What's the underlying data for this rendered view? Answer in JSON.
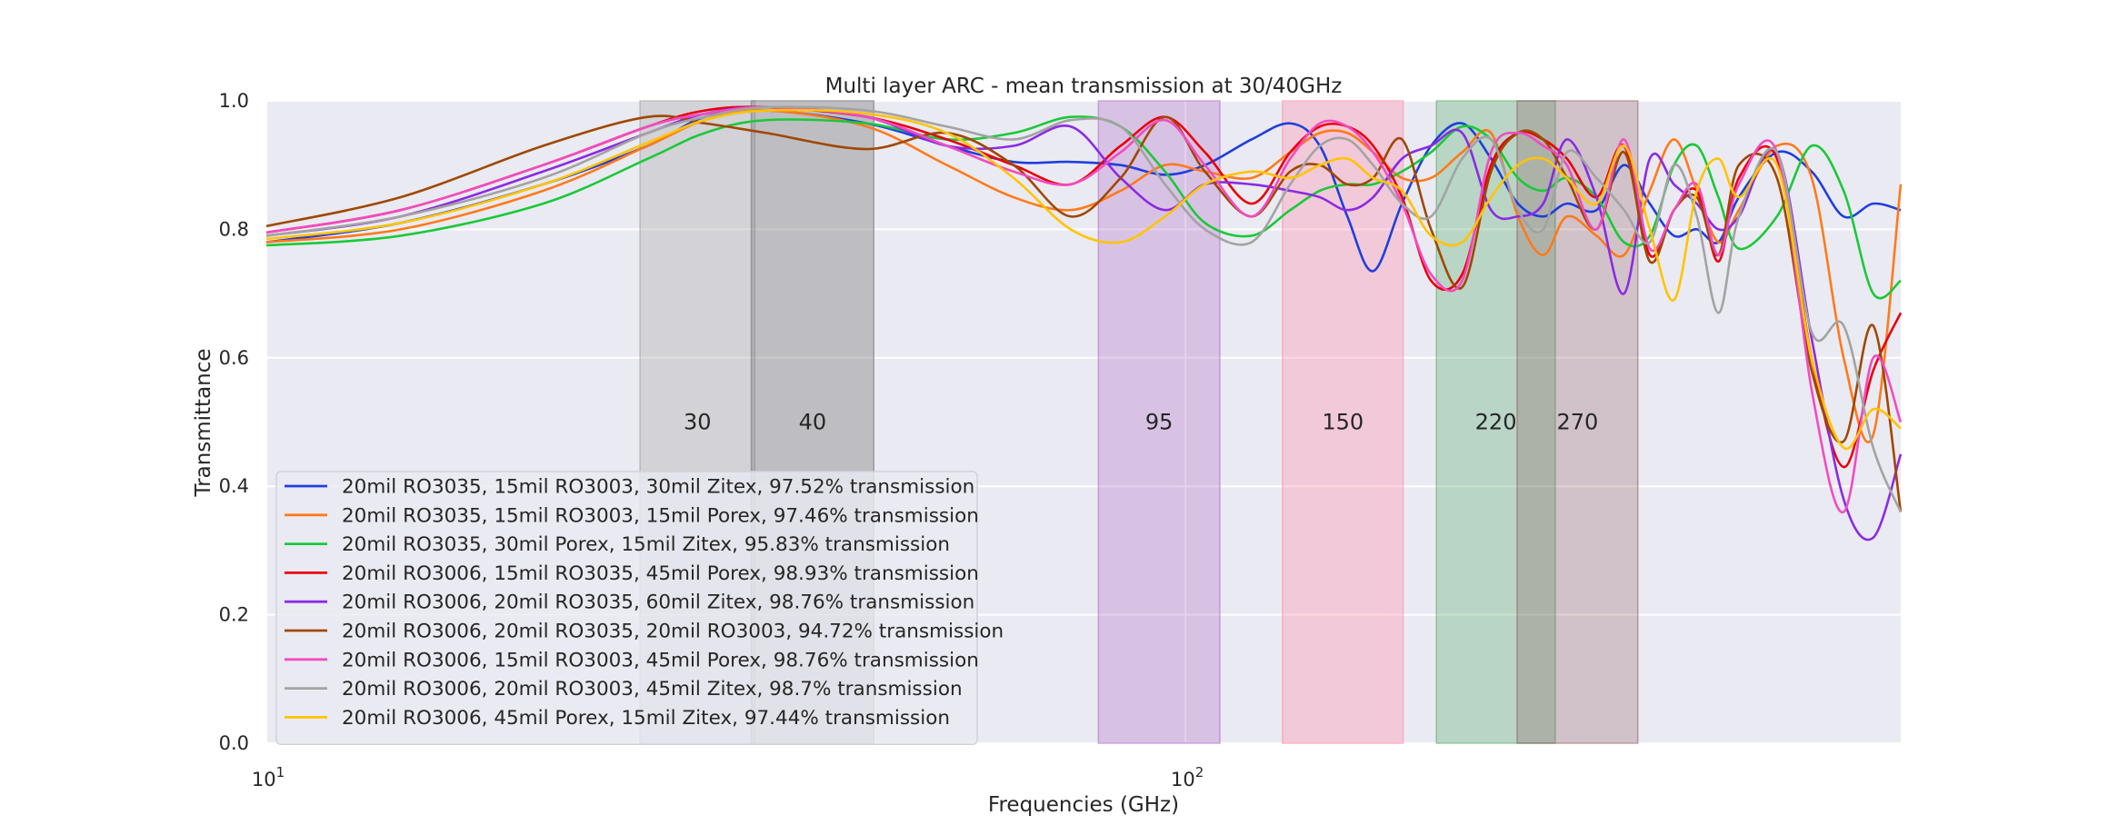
{
  "chart_data": {
    "type": "line",
    "title": "Multi layer ARC - mean transmission at 30/40GHz",
    "xlabel": "Frequencies (GHz)",
    "ylabel": "Transmittance",
    "x_scale": "log",
    "xlim": [
      10,
      600
    ],
    "ylim": [
      0,
      1
    ],
    "x_ticks": [
      {
        "value": 10,
        "base": "10",
        "exp": "1"
      },
      {
        "value": 100,
        "base": "10",
        "exp": "2"
      }
    ],
    "y_ticks": [
      {
        "value": 0.0,
        "label": "0.0"
      },
      {
        "value": 0.2,
        "label": "0.2"
      },
      {
        "value": 0.4,
        "label": "0.4"
      },
      {
        "value": 0.6,
        "label": "0.6"
      },
      {
        "value": 0.8,
        "label": "0.8"
      },
      {
        "value": 1.0,
        "label": "1.0"
      }
    ],
    "grid": true,
    "legend_position": "lower-left",
    "bands": [
      {
        "label": "30",
        "range": [
          25.5,
          34.0
        ],
        "color": "#a0a0a0",
        "opacity": 0.32
      },
      {
        "label": "40",
        "range": [
          33.7,
          45.8
        ],
        "color": "#808080",
        "opacity": 0.42
      },
      {
        "label": "95",
        "range": [
          80.4,
          109.0
        ],
        "color": "#b06cc8",
        "opacity": 0.32
      },
      {
        "label": "150",
        "range": [
          127.5,
          172.5
        ],
        "color": "#ff93b0",
        "opacity": 0.38
      },
      {
        "label": "220",
        "range": [
          187.5,
          252.5
        ],
        "color": "#5aad6e",
        "opacity": 0.34
      },
      {
        "label": "270",
        "range": [
          229.5,
          310.5
        ],
        "color": "#8e5a60",
        "opacity": 0.28
      }
    ],
    "series": [
      {
        "name": "20mil RO3035, 15mil RO3003, 30mil Zitex, 97.52% transmission",
        "color": "#1f3fdb",
        "x": [
          10,
          14,
          20,
          26,
          30,
          35,
          45,
          55,
          65,
          75,
          85,
          95,
          105,
          118,
          130,
          140,
          150,
          160,
          172,
          185,
          200,
          215,
          230,
          245,
          260,
          280,
          300,
          320,
          340,
          360,
          380,
          400,
          440,
          480,
          520,
          560,
          600
        ],
        "y": [
          0.78,
          0.81,
          0.87,
          0.93,
          0.975,
          0.985,
          0.965,
          0.93,
          0.905,
          0.905,
          0.9,
          0.885,
          0.9,
          0.94,
          0.965,
          0.93,
          0.82,
          0.735,
          0.84,
          0.93,
          0.965,
          0.91,
          0.84,
          0.82,
          0.84,
          0.83,
          0.9,
          0.84,
          0.79,
          0.8,
          0.78,
          0.85,
          0.92,
          0.89,
          0.82,
          0.84,
          0.83
        ]
      },
      {
        "name": "20mil RO3035, 15mil RO3003, 15mil Porex, 97.46% transmission",
        "color": "#ff7a1a",
        "x": [
          10,
          14,
          20,
          26,
          30,
          35,
          45,
          55,
          65,
          75,
          85,
          95,
          105,
          118,
          130,
          140,
          150,
          160,
          172,
          185,
          200,
          215,
          230,
          245,
          260,
          280,
          300,
          320,
          340,
          360,
          380,
          400,
          440,
          480,
          520,
          560,
          600
        ],
        "y": [
          0.78,
          0.8,
          0.86,
          0.93,
          0.97,
          0.985,
          0.96,
          0.9,
          0.85,
          0.83,
          0.86,
          0.9,
          0.89,
          0.88,
          0.92,
          0.95,
          0.95,
          0.92,
          0.88,
          0.88,
          0.92,
          0.95,
          0.82,
          0.76,
          0.82,
          0.79,
          0.76,
          0.86,
          0.94,
          0.86,
          0.78,
          0.83,
          0.93,
          0.88,
          0.6,
          0.48,
          0.87
        ]
      },
      {
        "name": "20mil RO3035, 30mil Porex, 15mil Zitex, 95.83% transmission",
        "color": "#1ac938",
        "x": [
          10,
          14,
          20,
          26,
          30,
          35,
          45,
          55,
          65,
          75,
          85,
          95,
          105,
          118,
          130,
          140,
          150,
          160,
          172,
          185,
          200,
          215,
          230,
          245,
          260,
          280,
          300,
          320,
          340,
          360,
          380,
          400,
          440,
          480,
          520,
          560,
          600
        ],
        "y": [
          0.775,
          0.79,
          0.84,
          0.91,
          0.95,
          0.97,
          0.965,
          0.94,
          0.95,
          0.975,
          0.96,
          0.89,
          0.81,
          0.79,
          0.83,
          0.86,
          0.87,
          0.87,
          0.89,
          0.92,
          0.96,
          0.94,
          0.88,
          0.86,
          0.88,
          0.85,
          0.78,
          0.79,
          0.9,
          0.93,
          0.85,
          0.77,
          0.82,
          0.93,
          0.86,
          0.7,
          0.72
        ]
      },
      {
        "name": "20mil RO3006, 15mil RO3035, 45mil Porex, 98.93% transmission",
        "color": "#e8000b",
        "x": [
          10,
          14,
          20,
          26,
          30,
          35,
          45,
          55,
          65,
          75,
          85,
          95,
          105,
          118,
          130,
          140,
          150,
          160,
          172,
          185,
          200,
          215,
          230,
          245,
          260,
          280,
          300,
          320,
          340,
          360,
          380,
          400,
          440,
          480,
          520,
          560,
          600
        ],
        "y": [
          0.795,
          0.83,
          0.9,
          0.96,
          0.985,
          0.99,
          0.975,
          0.94,
          0.9,
          0.87,
          0.93,
          0.975,
          0.92,
          0.84,
          0.92,
          0.96,
          0.96,
          0.93,
          0.85,
          0.72,
          0.73,
          0.9,
          0.95,
          0.94,
          0.91,
          0.85,
          0.93,
          0.76,
          0.83,
          0.86,
          0.75,
          0.88,
          0.91,
          0.6,
          0.43,
          0.58,
          0.67
        ]
      },
      {
        "name": "20mil RO3006, 20mil RO3035, 60mil Zitex, 98.76% transmission",
        "color": "#8b2be2",
        "x": [
          10,
          14,
          20,
          26,
          30,
          35,
          45,
          55,
          65,
          75,
          85,
          95,
          105,
          118,
          130,
          140,
          150,
          160,
          172,
          185,
          200,
          215,
          230,
          245,
          260,
          280,
          300,
          320,
          340,
          360,
          380,
          400,
          440,
          480,
          520,
          560,
          600
        ],
        "y": [
          0.79,
          0.82,
          0.89,
          0.95,
          0.98,
          0.99,
          0.975,
          0.93,
          0.93,
          0.96,
          0.88,
          0.83,
          0.87,
          0.87,
          0.86,
          0.85,
          0.83,
          0.85,
          0.91,
          0.93,
          0.95,
          0.83,
          0.82,
          0.84,
          0.94,
          0.85,
          0.7,
          0.91,
          0.87,
          0.84,
          0.8,
          0.82,
          0.92,
          0.63,
          0.38,
          0.32,
          0.45
        ]
      },
      {
        "name": "20mil RO3006, 20mil RO3035, 20mil RO3003, 94.72% transmission",
        "color": "#9f4800",
        "x": [
          10,
          14,
          20,
          26,
          30,
          35,
          45,
          55,
          65,
          75,
          85,
          95,
          105,
          118,
          130,
          140,
          150,
          160,
          172,
          185,
          200,
          215,
          230,
          245,
          260,
          280,
          300,
          320,
          340,
          360,
          380,
          400,
          440,
          480,
          520,
          560,
          600
        ],
        "y": [
          0.805,
          0.85,
          0.93,
          0.975,
          0.965,
          0.95,
          0.925,
          0.95,
          0.9,
          0.82,
          0.88,
          0.975,
          0.89,
          0.82,
          0.89,
          0.9,
          0.87,
          0.88,
          0.94,
          0.8,
          0.71,
          0.89,
          0.95,
          0.94,
          0.88,
          0.8,
          0.92,
          0.75,
          0.83,
          0.85,
          0.76,
          0.9,
          0.88,
          0.58,
          0.47,
          0.65,
          0.36
        ]
      },
      {
        "name": "20mil RO3006, 15mil RO3003, 45mil Porex, 98.76% transmission",
        "color": "#f14cc1",
        "x": [
          10,
          14,
          20,
          26,
          30,
          35,
          45,
          55,
          65,
          75,
          85,
          95,
          105,
          118,
          130,
          140,
          150,
          160,
          172,
          185,
          200,
          215,
          230,
          245,
          260,
          280,
          300,
          320,
          340,
          360,
          380,
          400,
          440,
          480,
          520,
          560,
          600
        ],
        "y": [
          0.795,
          0.83,
          0.9,
          0.96,
          0.98,
          0.99,
          0.975,
          0.93,
          0.89,
          0.87,
          0.92,
          0.97,
          0.9,
          0.82,
          0.91,
          0.965,
          0.96,
          0.92,
          0.84,
          0.73,
          0.72,
          0.92,
          0.95,
          0.93,
          0.9,
          0.8,
          0.94,
          0.77,
          0.83,
          0.87,
          0.76,
          0.87,
          0.92,
          0.55,
          0.36,
          0.6,
          0.5
        ]
      },
      {
        "name": "20mil RO3006, 20mil RO3003, 45mil Zitex, 98.7% transmission",
        "color": "#a3a3a3",
        "x": [
          10,
          14,
          20,
          26,
          30,
          35,
          45,
          55,
          65,
          75,
          85,
          95,
          105,
          118,
          130,
          140,
          150,
          160,
          172,
          185,
          200,
          215,
          230,
          245,
          260,
          280,
          300,
          320,
          340,
          360,
          380,
          400,
          440,
          480,
          520,
          560,
          600
        ],
        "y": [
          0.79,
          0.82,
          0.88,
          0.95,
          0.975,
          0.99,
          0.985,
          0.96,
          0.94,
          0.97,
          0.96,
          0.87,
          0.8,
          0.78,
          0.87,
          0.93,
          0.94,
          0.9,
          0.84,
          0.82,
          0.91,
          0.94,
          0.83,
          0.8,
          0.92,
          0.88,
          0.83,
          0.78,
          0.9,
          0.82,
          0.67,
          0.82,
          0.92,
          0.64,
          0.65,
          0.46,
          0.36
        ]
      },
      {
        "name": "20mil RO3006, 45mil Porex, 15mil Zitex, 97.44% transmission",
        "color": "#ffc400",
        "x": [
          10,
          14,
          20,
          26,
          30,
          35,
          45,
          55,
          65,
          75,
          85,
          95,
          105,
          118,
          130,
          140,
          150,
          160,
          172,
          185,
          200,
          215,
          230,
          245,
          260,
          280,
          300,
          320,
          340,
          360,
          380,
          400,
          440,
          480,
          520,
          560,
          600
        ],
        "y": [
          0.785,
          0.81,
          0.87,
          0.935,
          0.97,
          0.985,
          0.98,
          0.95,
          0.88,
          0.8,
          0.78,
          0.82,
          0.87,
          0.89,
          0.88,
          0.9,
          0.91,
          0.88,
          0.86,
          0.79,
          0.78,
          0.85,
          0.9,
          0.91,
          0.88,
          0.84,
          0.93,
          0.8,
          0.69,
          0.86,
          0.91,
          0.85,
          0.9,
          0.6,
          0.46,
          0.52,
          0.49
        ]
      }
    ]
  }
}
